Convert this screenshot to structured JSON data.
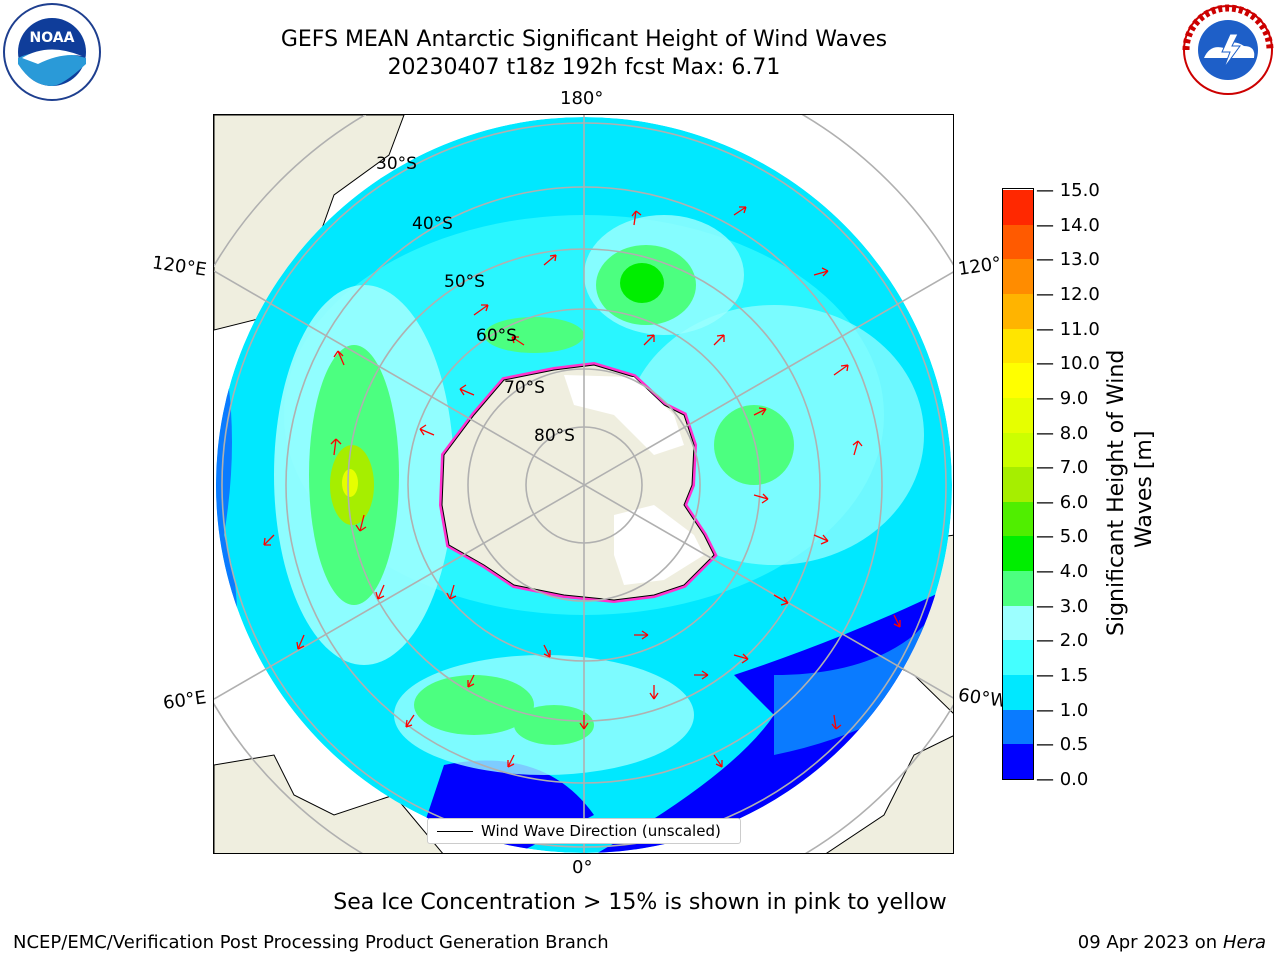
{
  "title": {
    "line1": "GEFS MEAN Antarctic Significant Height of Wind Waves",
    "line2": "20230407 t18z 192h fcst   Max: 6.71"
  },
  "map": {
    "projection": "south-polar-stereographic",
    "lon_labels": {
      "top": "180°",
      "bottom": "0°",
      "upper_left": "120°E",
      "upper_right": "120°",
      "lower_left": "60°E",
      "lower_right": "60°W"
    },
    "lat_labels": [
      "30°S",
      "40°S",
      "50°S",
      "60°S",
      "70°S",
      "80°S"
    ],
    "field": "Significant Height of Wind Waves",
    "vectors": "Wind Wave Direction (unscaled)",
    "vector_color": "#ff0000",
    "land_color": "#efeedf",
    "ice_colors": [
      "#ff33cc",
      "#cc44ff",
      "#ffd700"
    ]
  },
  "colorbar": {
    "label": "Significant Height of Wind Waves [m]",
    "label_line1": "Significant Height of Wind",
    "label_line2": "Waves [m]",
    "ticks": [
      "0.0",
      "0.5",
      "1.0",
      "1.5",
      "2.0",
      "3.0",
      "4.0",
      "5.0",
      "6.0",
      "7.0",
      "8.0",
      "9.0",
      "10.0",
      "11.0",
      "12.0",
      "13.0",
      "14.0",
      "15.0"
    ],
    "colors": [
      "#0000ff",
      "#0a7bff",
      "#00e8ff",
      "#44ffff",
      "#9cffff",
      "#4cff80",
      "#00ee00",
      "#50ee00",
      "#a6ee00",
      "#ccff00",
      "#e6ff00",
      "#ffff00",
      "#ffe500",
      "#ffb400",
      "#ff8c00",
      "#ff5a00",
      "#ff2800"
    ]
  },
  "legend": {
    "label": "Wind Wave Direction (unscaled)"
  },
  "footer": {
    "note": "Sea Ice Concentration > 15% is shown in pink to yellow",
    "credit": "NCEP/EMC/Verification Post Processing Product Generation Branch",
    "date": "09 Apr 2023 on",
    "host": "Hera"
  },
  "logos": {
    "left": "NOAA",
    "right": "NATIONAL WEATHER SERVICE"
  }
}
